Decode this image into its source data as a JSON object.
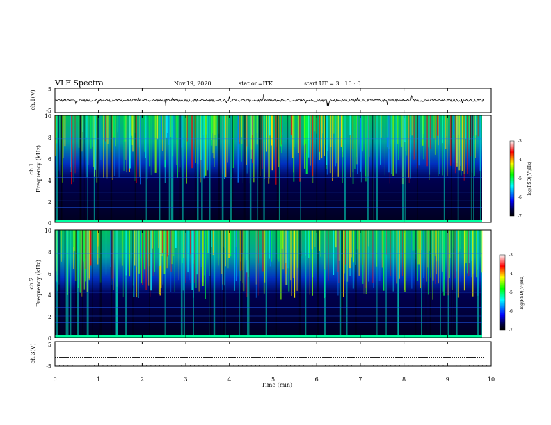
{
  "header": {
    "title": "VLF Spectra",
    "date": "Nov.19, 2020",
    "station": "station=ITK",
    "start": "start  UT =   3  : 10 : 0"
  },
  "chart_data": [
    {
      "type": "line",
      "panel": "ch1-waveform",
      "ylabel": "ch.1(V)",
      "yticks": [
        "5",
        "-5"
      ],
      "ylim": [
        -5,
        5
      ],
      "x_range_min": [
        0,
        9.83
      ],
      "baseline_value": 0
    },
    {
      "type": "heatmap",
      "panel": "ch1-spectrogram",
      "ylabel_top": "ch.1",
      "ylabel": "Frequency (kHz)",
      "yticks": [
        "0",
        "2",
        "4",
        "6",
        "8",
        "10"
      ],
      "ylim": [
        0,
        10
      ],
      "colorbar": {
        "label": "log(PSD)(V²/Hz)",
        "ticks": [
          "-3",
          "-4",
          "-5",
          "-6",
          "-7"
        ],
        "range": [
          -7,
          -3
        ]
      }
    },
    {
      "type": "heatmap",
      "panel": "ch2-spectrogram",
      "ylabel_top": "ch.2",
      "ylabel": "Frequency (kHz)",
      "yticks": [
        "0",
        "2",
        "4",
        "6",
        "8",
        "10"
      ],
      "ylim": [
        0,
        10
      ],
      "colorbar": {
        "label": "log(PSD)(V²/Hz)",
        "ticks": [
          "-3",
          "-4",
          "-5",
          "-6",
          "-7"
        ],
        "range": [
          -7,
          -3
        ]
      }
    },
    {
      "type": "line",
      "panel": "ch3-waveform",
      "ylabel": "ch.3(V)",
      "yticks": [
        "5",
        "-5"
      ],
      "ylim": [
        -5,
        5
      ],
      "baseline_value": -1.5
    }
  ],
  "xaxis": {
    "label": "Time  (min)",
    "ticks": [
      "0",
      "1",
      "2",
      "3",
      "4",
      "5",
      "6",
      "7",
      "8",
      "9",
      "10"
    ],
    "range": [
      0,
      10
    ]
  }
}
